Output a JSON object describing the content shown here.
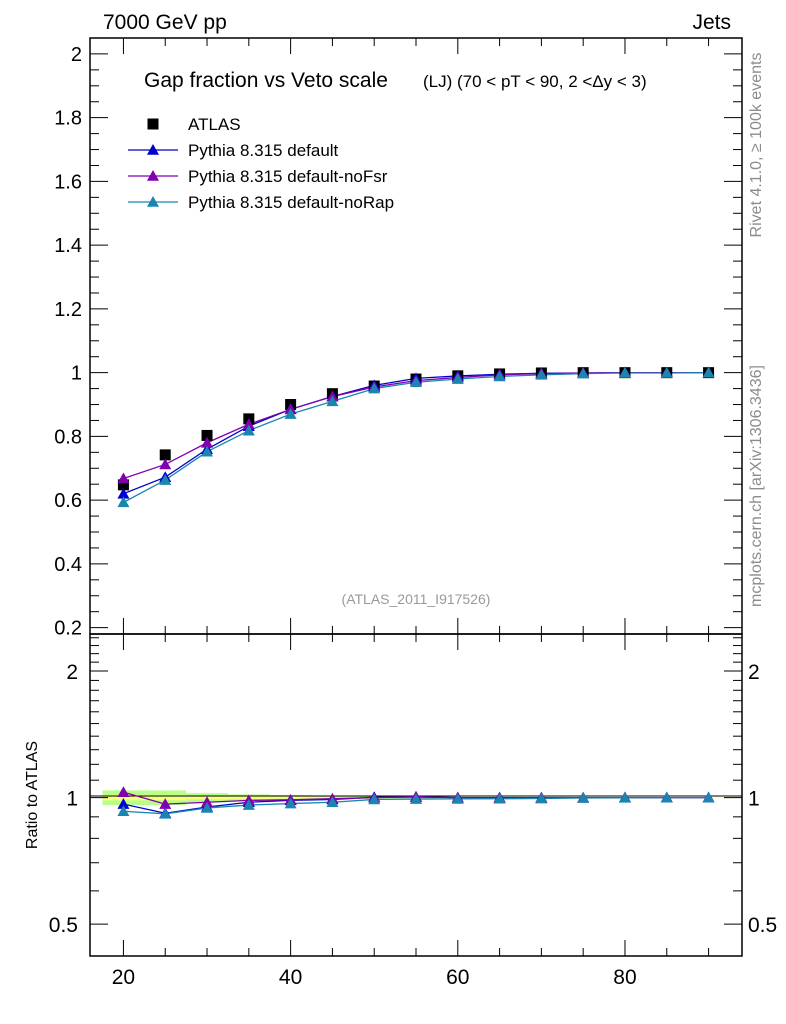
{
  "header": {
    "left": "7000 GeV pp",
    "right": "Jets"
  },
  "side_labels": {
    "rivet": "Rivet 4.1.0, ≥ 100k events",
    "mcplots": "mcplots.cern.ch [arXiv:1306.3436]"
  },
  "colors": {
    "atlas": "#000000",
    "default": "#0000cc",
    "noFsr": "#8000b0",
    "noRap": "#1a86b0",
    "band_inner": "#f4ff7a",
    "band_outer": "#b8ff8a"
  },
  "chart_data": [
    {
      "type": "line",
      "title": "Gap fraction vs Veto scale",
      "title_suffix": "(LJ) (70 < pT <  90, 2 <Δy < 3)",
      "analysis_label": "(ATLAS_2011_I917526)",
      "xlabel": "",
      "ylabel": "",
      "xlim": [
        16,
        94
      ],
      "ylim": [
        0.18,
        2.05
      ],
      "yticks": [
        0.2,
        0.4,
        0.6,
        0.8,
        1,
        1.2,
        1.4,
        1.6,
        1.8,
        2
      ],
      "ytick_labels": [
        "0.2",
        "0.4",
        "0.6",
        "0.8",
        "1",
        "1.2",
        "1.4",
        "1.6",
        "1.8",
        "2"
      ],
      "x": [
        20,
        25,
        30,
        35,
        40,
        45,
        50,
        55,
        60,
        65,
        70,
        75,
        80,
        85,
        90
      ],
      "series": [
        {
          "name": "ATLAS",
          "marker": "square",
          "color_key": "atlas",
          "values": [
            0.648,
            0.742,
            0.803,
            0.855,
            0.9,
            0.934,
            0.958,
            0.98,
            0.99,
            0.996,
            0.999,
            1.0,
            1.0,
            1.0,
            1.0
          ]
        },
        {
          "name": "Pythia 8.315 default",
          "marker": "triangle",
          "color_key": "default",
          "values": [
            0.62,
            0.672,
            0.76,
            0.832,
            0.885,
            0.925,
            0.96,
            0.982,
            0.99,
            0.995,
            0.998,
            0.999,
            1.0,
            1.0,
            1.0
          ]
        },
        {
          "name": "Pythia 8.315 default-noFsr",
          "marker": "triangle",
          "color_key": "noFsr",
          "values": [
            0.668,
            0.712,
            0.78,
            0.838,
            0.885,
            0.925,
            0.955,
            0.975,
            0.985,
            0.993,
            0.997,
            0.999,
            1.0,
            1.0,
            1.0
          ]
        },
        {
          "name": "Pythia 8.315 default-noRap",
          "marker": "triangle",
          "color_key": "noRap",
          "values": [
            0.593,
            0.663,
            0.752,
            0.818,
            0.87,
            0.91,
            0.95,
            0.97,
            0.98,
            0.988,
            0.993,
            0.997,
            0.999,
            0.999,
            1.0
          ]
        }
      ]
    },
    {
      "type": "line",
      "title": "",
      "xlabel": "",
      "ylabel": "Ratio to ATLAS",
      "xlim": [
        16,
        94
      ],
      "ylim": [
        0.42,
        2.45
      ],
      "yscale": "log",
      "yticks": [
        0.5,
        1,
        2
      ],
      "ytick_labels": [
        "0.5",
        "1",
        "2"
      ],
      "xticks": [
        20,
        40,
        60,
        80
      ],
      "xtick_labels": [
        "20",
        "40",
        "60",
        "80"
      ],
      "x": [
        20,
        25,
        30,
        35,
        40,
        45,
        50,
        55,
        60,
        65,
        70,
        75,
        80,
        85,
        90
      ],
      "band": {
        "x_edges": [
          17.5,
          22.5,
          27.5,
          32.5,
          37.5,
          42.5,
          47.5,
          52.5,
          57.5,
          62.5,
          67.5,
          72.5,
          77.5,
          82.5,
          87.5,
          92.5
        ],
        "inner_lo": [
          0.985,
          0.985,
          0.99,
          0.992,
          0.994,
          0.996,
          0.997,
          0.998,
          0.999,
          0.999,
          1.0,
          1.0,
          1.0,
          1.0,
          1.0
        ],
        "inner_hi": [
          1.015,
          1.015,
          1.01,
          1.008,
          1.006,
          1.004,
          1.003,
          1.002,
          1.001,
          1.001,
          1.0,
          1.0,
          1.0,
          1.0,
          1.0
        ],
        "outer_lo": [
          0.96,
          0.96,
          0.975,
          0.982,
          0.986,
          0.99,
          0.993,
          0.995,
          0.997,
          0.998,
          0.999,
          0.999,
          1.0,
          1.0,
          1.0
        ],
        "outer_hi": [
          1.04,
          1.04,
          1.025,
          1.018,
          1.014,
          1.01,
          1.007,
          1.005,
          1.003,
          1.002,
          1.001,
          1.001,
          1.0,
          1.0,
          1.0
        ]
      },
      "series": [
        {
          "name": "Pythia 8.315 default",
          "color_key": "default",
          "values": [
            0.965,
            0.918,
            0.95,
            0.975,
            0.985,
            0.99,
            1.002,
            1.003,
            1.0,
            1.0,
            0.999,
            0.999,
            1.0,
            1.0,
            1.0
          ]
        },
        {
          "name": "Pythia 8.315 default-noFsr",
          "color_key": "noFsr",
          "values": [
            1.03,
            0.965,
            0.975,
            0.985,
            0.988,
            0.994,
            1.0,
            1.005,
            1.0,
            0.999,
            0.999,
            0.999,
            1.0,
            1.0,
            1.0
          ]
        },
        {
          "name": "Pythia 8.315 default-noRap",
          "color_key": "noRap",
          "values": [
            0.928,
            0.915,
            0.945,
            0.96,
            0.968,
            0.975,
            0.99,
            0.992,
            0.993,
            0.994,
            0.995,
            0.998,
            0.999,
            1.0,
            1.0
          ]
        }
      ]
    }
  ]
}
